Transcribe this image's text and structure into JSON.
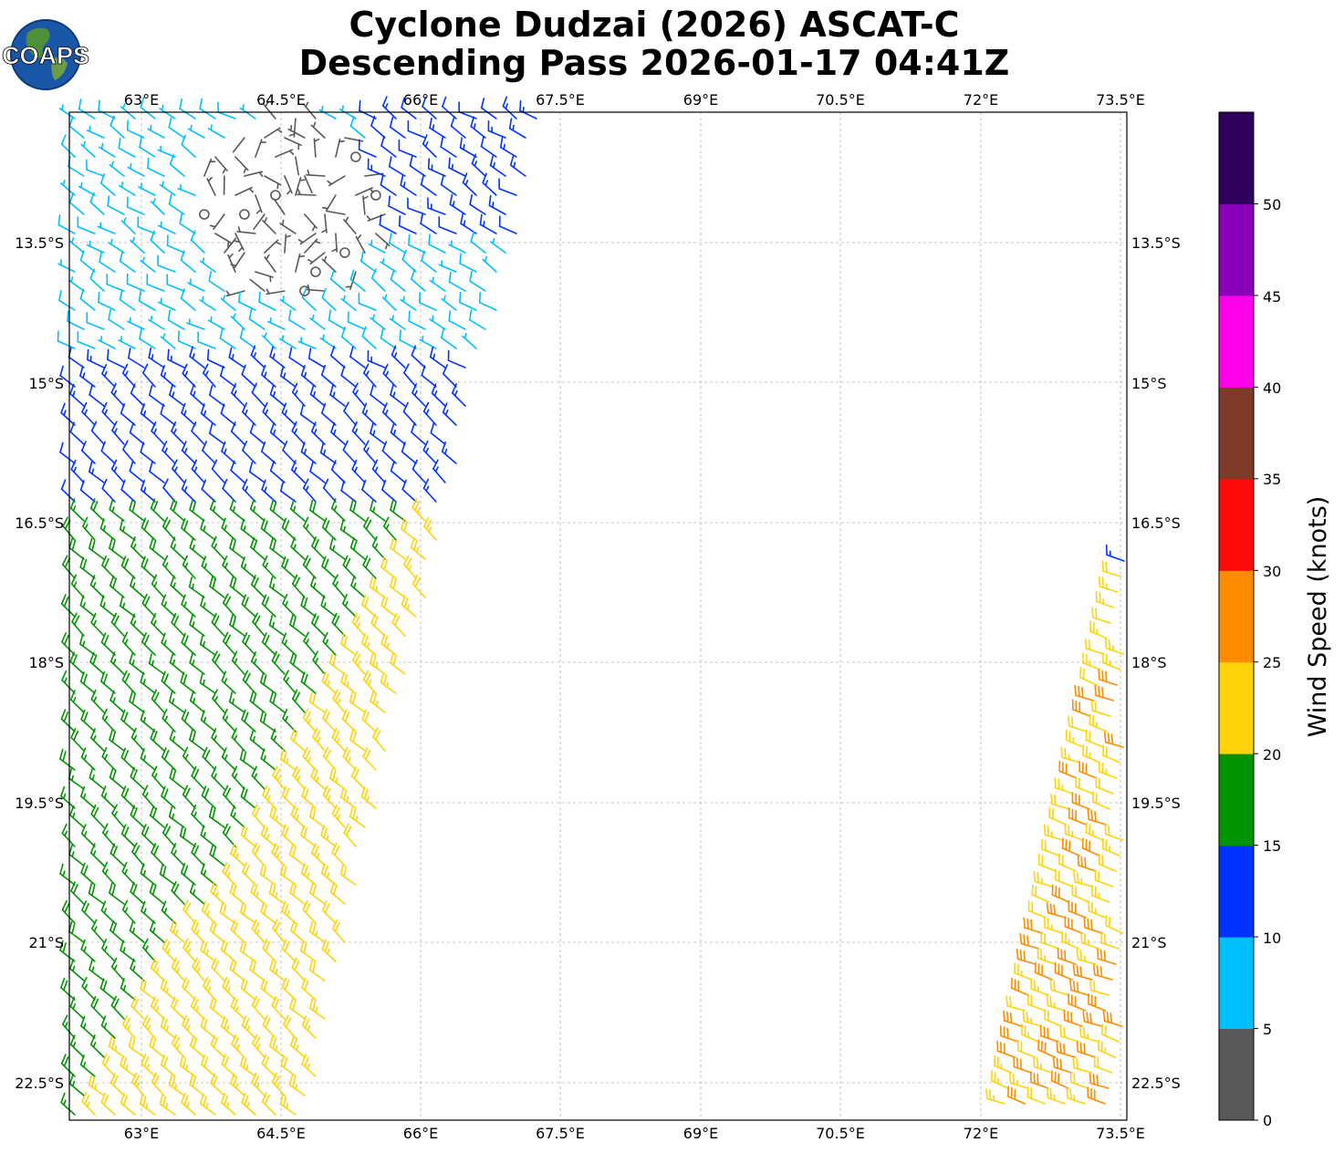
{
  "title": {
    "line1": "Cyclone Dudzai (2026) ASCAT-C",
    "line2": "Descending Pass 2026-01-17 04:41Z"
  },
  "logo": {
    "text": "COAPS",
    "icon": "globe-logo-icon"
  },
  "map": {
    "lon_ticks": [
      "63°E",
      "64.5°E",
      "66°E",
      "67.5°E",
      "69°E",
      "70.5°E",
      "72°E",
      "73.5°E"
    ],
    "lat_ticks": [
      "13.5°S",
      "15°S",
      "16.5°S",
      "18°S",
      "19.5°S",
      "21°S",
      "22.5°S"
    ],
    "gridlines": true,
    "lon_range_E": [
      62.23,
      73.57
    ],
    "lat_range_S": [
      12.1,
      22.9
    ]
  },
  "colorbar": {
    "label": "Wind Speed (knots)",
    "tick_labels": [
      "0",
      "5",
      "10",
      "15",
      "20",
      "25",
      "30",
      "35",
      "40",
      "45",
      "50"
    ],
    "bins": [
      {
        "range": [
          0,
          5
        ],
        "color": "#585858"
      },
      {
        "range": [
          5,
          10
        ],
        "color": "#00bfff"
      },
      {
        "range": [
          10,
          15
        ],
        "color": "#0033ff"
      },
      {
        "range": [
          15,
          20
        ],
        "color": "#009400"
      },
      {
        "range": [
          20,
          25
        ],
        "color": "#ffd30a"
      },
      {
        "range": [
          25,
          30
        ],
        "color": "#ff8c00"
      },
      {
        "range": [
          30,
          35
        ],
        "color": "#ff0a0a"
      },
      {
        "range": [
          35,
          40
        ],
        "color": "#803a29"
      },
      {
        "range": [
          40,
          45
        ],
        "color": "#ff00ea"
      },
      {
        "range": [
          45,
          50
        ],
        "color": "#8800b8"
      },
      {
        "range": [
          50,
          55
        ],
        "color": "#2e005b"
      }
    ]
  },
  "swaths": [
    {
      "name": "west",
      "coverage": "62.2-67.3°E, 12.1-22.9°S"
    },
    {
      "name": "east",
      "coverage": "72.2-73.6°E, 16.9-22.9°S"
    }
  ]
}
